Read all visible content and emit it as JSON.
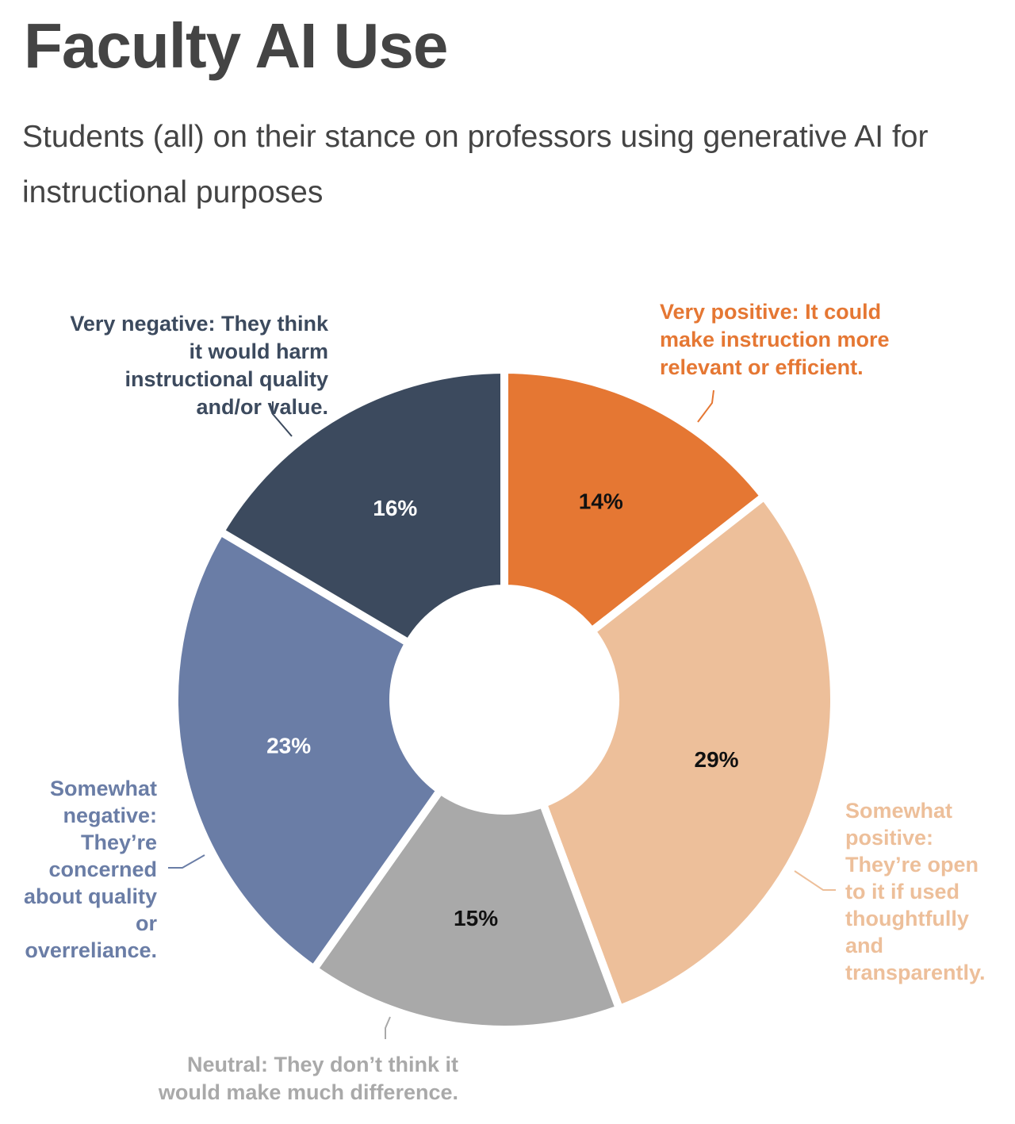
{
  "chart_data": {
    "type": "pie",
    "variant": "donut",
    "title": "Faculty AI Use",
    "subtitle": "Students (all) on their stance on professors using generative AI for instructional purposes",
    "slices": [
      {
        "label": "Very positive: It could make instruction more relevant or efficient.",
        "value": 14,
        "display": "14%",
        "color": "#E57733",
        "text_color": "#111111"
      },
      {
        "label": "Somewhat positive: They’re open to it if used thoughtfully and transparently.",
        "value": 29,
        "display": "29%",
        "color": "#EDBF9A",
        "text_color": "#111111"
      },
      {
        "label": "Neutral: They don’t think it would make much difference.",
        "value": 15,
        "display": "15%",
        "color": "#A9A9A9",
        "text_color": "#111111"
      },
      {
        "label": "Somewhat negative: They’re concerned about quality or overreliance.",
        "value": 23,
        "display": "23%",
        "color": "#6A7DA6",
        "text_color": "#ffffff"
      },
      {
        "label": "Very negative: They think it would harm instructional quality and/or value.",
        "value": 16,
        "display": "16%",
        "color": "#3C4A5E",
        "text_color": "#ffffff"
      }
    ]
  }
}
